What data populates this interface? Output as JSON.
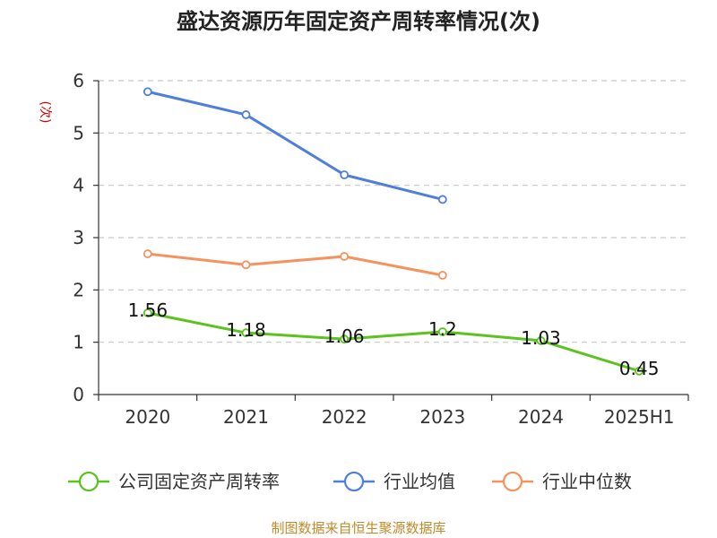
{
  "chart_data": {
    "type": "line",
    "title": "盛达资源历年固定资产周转率情况(次)",
    "ylabel": "(次)",
    "xlabel": "",
    "categories": [
      "2020",
      "2021",
      "2022",
      "2023",
      "2024",
      "2025H1"
    ],
    "ylim": [
      0,
      6
    ],
    "yticks": [
      "0",
      "1",
      "2",
      "3",
      "4",
      "5",
      "6"
    ],
    "grid": true,
    "legend_position": "bottom",
    "series": [
      {
        "name": "公司固定资产周转率",
        "color": "#5cc21e",
        "values": [
          1.56,
          1.18,
          1.06,
          1.2,
          1.03,
          0.45
        ],
        "labels": [
          "1.56",
          "1.18",
          "1.06",
          "1.2",
          "1.03",
          "0.45"
        ]
      },
      {
        "name": "行业均值",
        "color": "#4f7fd8",
        "values": [
          5.79,
          5.35,
          4.2,
          3.73,
          null,
          null
        ]
      },
      {
        "name": "行业中位数",
        "color": "#f4935e",
        "values": [
          2.69,
          2.48,
          2.64,
          2.28,
          null,
          null
        ]
      }
    ],
    "source": "制图数据来自恒生聚源数据库"
  }
}
